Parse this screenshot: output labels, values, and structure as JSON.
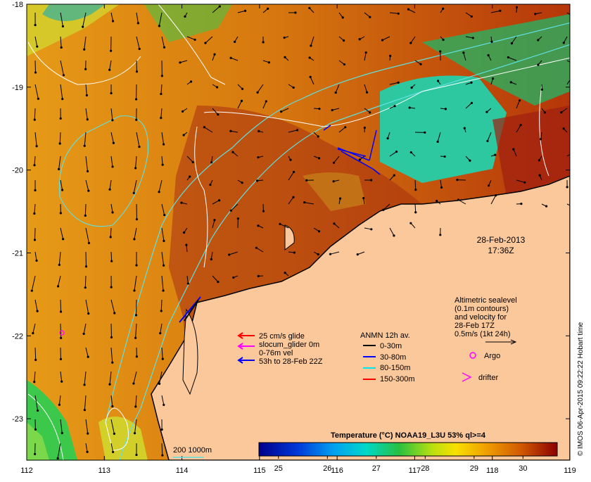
{
  "map": {
    "lon_ticks": [
      "112",
      "113",
      "114",
      "115",
      "116",
      "117",
      "118",
      "119"
    ],
    "lat_ticks": [
      "-18",
      "-19",
      "-20",
      "-21",
      "-22",
      "-23"
    ],
    "lon_range": [
      112,
      119
    ],
    "lat_range": [
      -23.5,
      -18
    ],
    "date": "28-Feb-2013",
    "time": "17:36Z",
    "credit": "© IMOS 06-Apr-2015 09:22:22 Hobart time"
  },
  "legend_glider": {
    "items": [
      {
        "label": "25 cm/s glide",
        "color": "#ff0000"
      },
      {
        "label": "slocum_glider 0m",
        "color": "#ff00ff"
      },
      {
        "label": "0-76m vel",
        "color": ""
      },
      {
        "label": "53h to 28-Feb 22Z",
        "color": "#0000ff"
      }
    ]
  },
  "legend_anmn": {
    "title": "ANMN 12h av.",
    "items": [
      {
        "label": "0-30m",
        "color": "#000000"
      },
      {
        "label": "30-80m",
        "color": "#0000ff"
      },
      {
        "label": "80-150m",
        "color": "#00e5ee"
      },
      {
        "label": "150-300m",
        "color": "#ff0000"
      }
    ]
  },
  "altimetry_note": {
    "lines": [
      "Altimetric sealevel",
      "(0.1m contours)",
      "and velocity for",
      "28-Feb 17Z",
      "0.5m/s (1kt 24h)"
    ]
  },
  "markers": {
    "argo": "Argo",
    "drifter": "drifter",
    "argo_color": "#ff00ff"
  },
  "isobath_label": "200  1000m",
  "colorbar": {
    "title": "Temperature (°C) NOAA19_L3U 53% ql>=4",
    "ticks": [
      "25",
      "26",
      "27",
      "28",
      "29",
      "30"
    ],
    "range": [
      24.6,
      30.7
    ]
  }
}
